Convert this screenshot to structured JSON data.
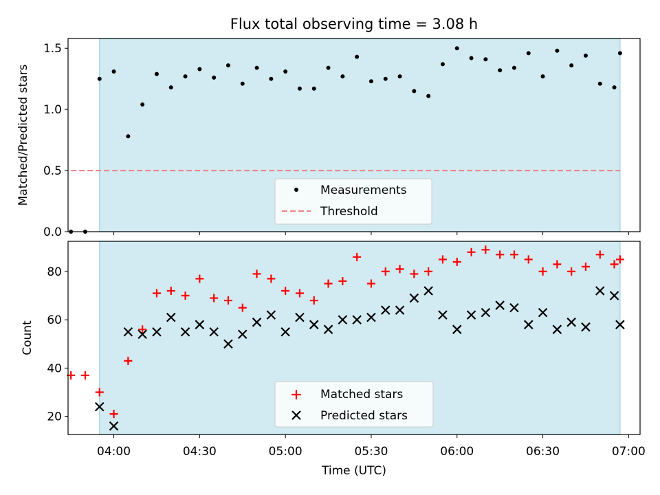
{
  "title": "Flux total observing time = 3.08 h",
  "colors": {
    "shade": "#add8e6",
    "threshold": "#f08080",
    "matched": "#ff0000",
    "predicted": "#000000",
    "measure": "#000000"
  },
  "chart_data": [
    {
      "type": "scatter",
      "ylabel": "Matched/Predicted stars",
      "xlim": [
        "03:44",
        "07:04"
      ],
      "ylim": [
        0,
        1.58
      ],
      "yticks": [
        0,
        0.5,
        1.0,
        1.5
      ],
      "ytick_labels": [
        "0.0",
        "0.5",
        "1.0",
        "1.5"
      ],
      "shaded_span": [
        "03:55",
        "06:57"
      ],
      "threshold": {
        "label": "Threshold",
        "value": 0.5,
        "x_range": [
          "03:45",
          "06:57"
        ]
      },
      "legend_position": "lower center",
      "series": [
        {
          "name": "Measurements",
          "x": [
            "03:45",
            "03:50",
            "03:55",
            "04:00",
            "04:05",
            "04:10",
            "04:15",
            "04:20",
            "04:25",
            "04:30",
            "04:35",
            "04:40",
            "04:45",
            "04:50",
            "04:55",
            "05:00",
            "05:05",
            "05:10",
            "05:15",
            "05:20",
            "05:25",
            "05:30",
            "05:35",
            "05:40",
            "05:45",
            "05:50",
            "05:55",
            "06:00",
            "06:05",
            "06:10",
            "06:15",
            "06:20",
            "06:25",
            "06:30",
            "06:35",
            "06:40",
            "06:45",
            "06:50",
            "06:55",
            "06:57"
          ],
          "y": [
            0,
            0,
            1.25,
            1.31,
            0.78,
            1.04,
            1.29,
            1.18,
            1.27,
            1.33,
            1.26,
            1.36,
            1.21,
            1.34,
            1.25,
            1.31,
            1.17,
            1.17,
            1.34,
            1.27,
            1.43,
            1.23,
            1.25,
            1.27,
            1.15,
            1.11,
            1.37,
            1.5,
            1.42,
            1.41,
            1.32,
            1.34,
            1.46,
            1.27,
            1.48,
            1.36,
            1.44,
            1.21,
            1.18,
            1.46
          ]
        }
      ]
    },
    {
      "type": "scatter",
      "xlabel": "Time (UTC)",
      "ylabel": "Count",
      "xlim": [
        "03:44",
        "07:04"
      ],
      "ylim": [
        12.5,
        92.5
      ],
      "yticks": [
        20,
        40,
        60,
        80
      ],
      "x_ticks": [
        "04:00",
        "04:30",
        "05:00",
        "05:30",
        "06:00",
        "06:30",
        "07:00"
      ],
      "shaded_span": [
        "03:55",
        "06:57"
      ],
      "legend_position": "lower center",
      "series": [
        {
          "name": "Matched stars",
          "x": [
            "03:45",
            "03:50",
            "03:55",
            "04:00",
            "04:05",
            "04:10",
            "04:15",
            "04:20",
            "04:25",
            "04:30",
            "04:35",
            "04:40",
            "04:45",
            "04:50",
            "04:55",
            "05:00",
            "05:05",
            "05:10",
            "05:15",
            "05:20",
            "05:25",
            "05:30",
            "05:35",
            "05:40",
            "05:45",
            "05:50",
            "05:55",
            "06:00",
            "06:05",
            "06:10",
            "06:15",
            "06:20",
            "06:25",
            "06:30",
            "06:35",
            "06:40",
            "06:45",
            "06:50",
            "06:55",
            "06:57"
          ],
          "y": [
            37,
            37,
            30,
            21,
            43,
            56,
            71,
            72,
            70,
            77,
            69,
            68,
            65,
            79,
            77,
            72,
            71,
            68,
            75,
            76,
            86,
            75,
            80,
            81,
            79,
            80,
            85,
            84,
            88,
            89,
            87,
            87,
            85,
            80,
            83,
            80,
            82,
            87,
            83,
            85
          ]
        },
        {
          "name": "Predicted stars",
          "x": [
            "03:55",
            "04:00",
            "04:05",
            "04:10",
            "04:15",
            "04:20",
            "04:25",
            "04:30",
            "04:35",
            "04:40",
            "04:45",
            "04:50",
            "04:55",
            "05:00",
            "05:05",
            "05:10",
            "05:15",
            "05:20",
            "05:25",
            "05:30",
            "05:35",
            "05:40",
            "05:45",
            "05:50",
            "05:55",
            "06:00",
            "06:05",
            "06:10",
            "06:15",
            "06:20",
            "06:25",
            "06:30",
            "06:35",
            "06:40",
            "06:45",
            "06:50",
            "06:55",
            "06:57"
          ],
          "y": [
            24,
            16,
            55,
            54,
            55,
            61,
            55,
            58,
            55,
            50,
            54,
            59,
            62,
            55,
            61,
            58,
            56,
            60,
            60,
            61,
            64,
            64,
            69,
            72,
            62,
            56,
            62,
            63,
            66,
            65,
            58,
            63,
            56,
            59,
            57,
            72,
            70,
            58
          ]
        }
      ]
    }
  ]
}
